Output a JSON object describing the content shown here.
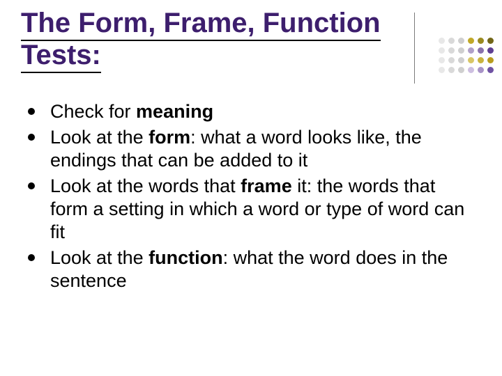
{
  "title": {
    "text": "The Form, Frame, Function Tests:",
    "color": "#3d1e6d",
    "fontsize": 40,
    "font_weight": "bold"
  },
  "decor": {
    "divider_color": "#7a7a7a",
    "dot_rows": [
      [
        "#e8e8e8",
        "#d9d9d9",
        "#cfcfcf",
        "#c0a828",
        "#9a8a20",
        "#726618"
      ],
      [
        "#e8e8e8",
        "#d9d9d9",
        "#cfcfcf",
        "#b0a0c8",
        "#8a72ad",
        "#5f3f93"
      ],
      [
        "#e8e8e8",
        "#d9d9d9",
        "#cfcfcf",
        "#d8c666",
        "#c9b33f",
        "#b89c1e"
      ],
      [
        "#e8e8e8",
        "#d9d9d9",
        "#cfcfcf",
        "#cdbfe0",
        "#a893c7",
        "#6f52a3"
      ]
    ],
    "dot_diameter": 9,
    "dot_gap": 5
  },
  "body": {
    "fontsize": 27,
    "bullet_color": "#000000",
    "text_color": "#000000",
    "items": [
      {
        "prefix": "Check for ",
        "bold": "meaning",
        "suffix": ""
      },
      {
        "prefix": "Look at the ",
        "bold": "form",
        "suffix": ": what a word looks like, the endings that can be added to it"
      },
      {
        "prefix": "Look at the words that ",
        "bold": "frame",
        "suffix": " it: the words that form a setting in which a word or type of word can fit"
      },
      {
        "prefix": "Look at the ",
        "bold": "function",
        "suffix": ": what the word does in the sentence"
      }
    ]
  },
  "background_color": "#ffffff"
}
